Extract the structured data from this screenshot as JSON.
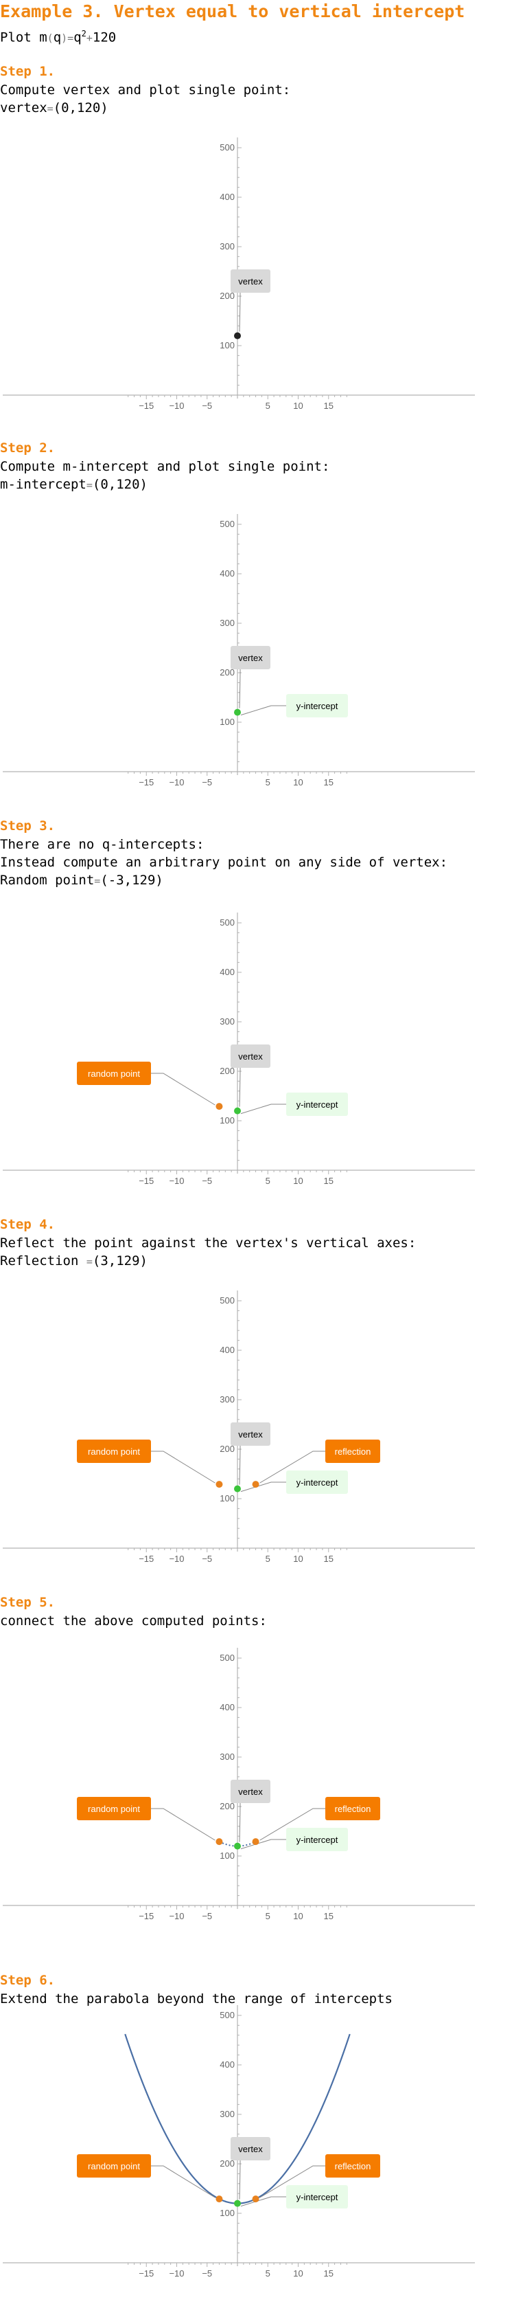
{
  "title": "Example 3. Vertex equal to vertical intercept",
  "intro": {
    "prefix": "Plot ",
    "func": "m",
    "lp": "(",
    "var": "q",
    "rp": ")",
    "eq": "=",
    "base": "q",
    "exp": "2",
    "plus": "+",
    "const": "120"
  },
  "steps": [
    {
      "label": "Step 1.",
      "lines": [
        {
          "parts": [
            {
              "t": "Compute vertex and plot single point:"
            }
          ]
        },
        {
          "parts": [
            {
              "t": "vertex"
            },
            {
              "t": "=",
              "op": true
            },
            {
              "t": "(0,120)"
            }
          ]
        }
      ]
    },
    {
      "label": "Step 2.",
      "lines": [
        {
          "parts": [
            {
              "t": "Compute m-intercept and plot single point:"
            }
          ]
        },
        {
          "parts": [
            {
              "t": "m-intercept"
            },
            {
              "t": "=",
              "op": true
            },
            {
              "t": "(0,120)"
            }
          ]
        }
      ]
    },
    {
      "label": "Step 3.",
      "lines": [
        {
          "parts": [
            {
              "t": "There are no q-intercepts:"
            }
          ]
        },
        {
          "parts": [
            {
              "t": "Instead compute an arbitrary point on any side of vertex:"
            }
          ]
        },
        {
          "parts": [
            {
              "t": "Random point"
            },
            {
              "t": "=",
              "op": true
            },
            {
              "t": "(-3,129)"
            }
          ]
        }
      ]
    },
    {
      "label": "Step 4.",
      "lines": [
        {
          "parts": [
            {
              "t": "Reflect the point against the vertex's vertical axes:"
            }
          ]
        },
        {
          "parts": [
            {
              "t": "Reflection "
            },
            {
              "t": "=",
              "op": true
            },
            {
              "t": "(3,129)"
            }
          ]
        }
      ]
    },
    {
      "label": "Step 5.",
      "lines": [
        {
          "parts": [
            {
              "t": "connect the above computed points:"
            }
          ]
        }
      ]
    },
    {
      "label": "Step 6.",
      "lines": [
        {
          "parts": [
            {
              "t": "Extend the parabola beyond the range of intercepts"
            }
          ]
        }
      ]
    }
  ],
  "colors": {
    "accent": "#f08714",
    "axis": "#b3b3b3",
    "tick_label": "#666666",
    "vertex_point": "#222222",
    "intercept_point": "#3bc43b",
    "orange_point": "#e8821e",
    "curve": "#4a6fa5",
    "vertex_label_bg": "#d9d9d9",
    "intercept_label_bg": "#e8fbe8",
    "orange_label_bg": "#f57c00",
    "leader": "#888888"
  },
  "chart_data": [
    {
      "type": "scatter",
      "xlim": [
        -18.5,
        19
      ],
      "ylim": [
        -10,
        520
      ],
      "xticks": [
        -15,
        -10,
        -5,
        5,
        10,
        15
      ],
      "yticks": [
        100,
        200,
        300,
        400,
        500
      ],
      "points": [
        {
          "x": 0,
          "y": 120,
          "kind": "vertex"
        }
      ],
      "callouts": [
        {
          "text": "vertex",
          "kind": "vertex"
        }
      ],
      "curves": []
    },
    {
      "type": "scatter",
      "xlim": [
        -18.5,
        19
      ],
      "ylim": [
        -10,
        520
      ],
      "xticks": [
        -15,
        -10,
        -5,
        5,
        10,
        15
      ],
      "yticks": [
        100,
        200,
        300,
        400,
        500
      ],
      "points": [
        {
          "x": 0,
          "y": 120,
          "kind": "intercept"
        }
      ],
      "callouts": [
        {
          "text": "vertex",
          "kind": "vertex"
        },
        {
          "text": "y-intercept",
          "kind": "intercept"
        }
      ],
      "curves": []
    },
    {
      "type": "scatter",
      "xlim": [
        -18.5,
        19
      ],
      "ylim": [
        -10,
        520
      ],
      "xticks": [
        -15,
        -10,
        -5,
        5,
        10,
        15
      ],
      "yticks": [
        100,
        200,
        300,
        400,
        500
      ],
      "points": [
        {
          "x": 0,
          "y": 120,
          "kind": "intercept"
        },
        {
          "x": -3,
          "y": 129,
          "kind": "random"
        }
      ],
      "callouts": [
        {
          "text": "vertex",
          "kind": "vertex"
        },
        {
          "text": "y-intercept",
          "kind": "intercept"
        },
        {
          "text": "random point",
          "kind": "random"
        }
      ],
      "curves": []
    },
    {
      "type": "scatter",
      "xlim": [
        -18.5,
        19
      ],
      "ylim": [
        -10,
        520
      ],
      "xticks": [
        -15,
        -10,
        -5,
        5,
        10,
        15
      ],
      "yticks": [
        100,
        200,
        300,
        400,
        500
      ],
      "points": [
        {
          "x": 0,
          "y": 120,
          "kind": "intercept"
        },
        {
          "x": -3,
          "y": 129,
          "kind": "random"
        },
        {
          "x": 3,
          "y": 129,
          "kind": "reflection"
        }
      ],
      "callouts": [
        {
          "text": "vertex",
          "kind": "vertex"
        },
        {
          "text": "y-intercept",
          "kind": "intercept"
        },
        {
          "text": "random point",
          "kind": "random"
        },
        {
          "text": "reflection",
          "kind": "reflection"
        }
      ],
      "curves": []
    },
    {
      "type": "line",
      "xlim": [
        -18.5,
        19
      ],
      "ylim": [
        -10,
        520
      ],
      "xticks": [
        -15,
        -10,
        -5,
        5,
        10,
        15
      ],
      "yticks": [
        100,
        200,
        300,
        400,
        500
      ],
      "points": [
        {
          "x": 0,
          "y": 120,
          "kind": "intercept"
        },
        {
          "x": -3,
          "y": 129,
          "kind": "random"
        },
        {
          "x": 3,
          "y": 129,
          "kind": "reflection"
        }
      ],
      "callouts": [
        {
          "text": "vertex",
          "kind": "vertex"
        },
        {
          "text": "y-intercept",
          "kind": "intercept"
        },
        {
          "text": "random point",
          "kind": "random"
        },
        {
          "text": "reflection",
          "kind": "reflection"
        }
      ],
      "curves": [
        {
          "x_from": -3,
          "x_to": 3,
          "style": "dotted"
        }
      ]
    },
    {
      "type": "line",
      "xlim": [
        -18.5,
        19
      ],
      "ylim": [
        -10,
        520
      ],
      "xticks": [
        -15,
        -10,
        -5,
        5,
        10,
        15
      ],
      "yticks": [
        100,
        200,
        300,
        400,
        500
      ],
      "points": [
        {
          "x": 0,
          "y": 120,
          "kind": "intercept"
        },
        {
          "x": -3,
          "y": 129,
          "kind": "random"
        },
        {
          "x": 3,
          "y": 129,
          "kind": "reflection"
        }
      ],
      "callouts": [
        {
          "text": "vertex",
          "kind": "vertex"
        },
        {
          "text": "y-intercept",
          "kind": "intercept"
        },
        {
          "text": "random point",
          "kind": "random"
        },
        {
          "text": "reflection",
          "kind": "reflection"
        }
      ],
      "curves": [
        {
          "x_from": -18.5,
          "x_to": 18.5,
          "style": "solid"
        }
      ]
    }
  ]
}
